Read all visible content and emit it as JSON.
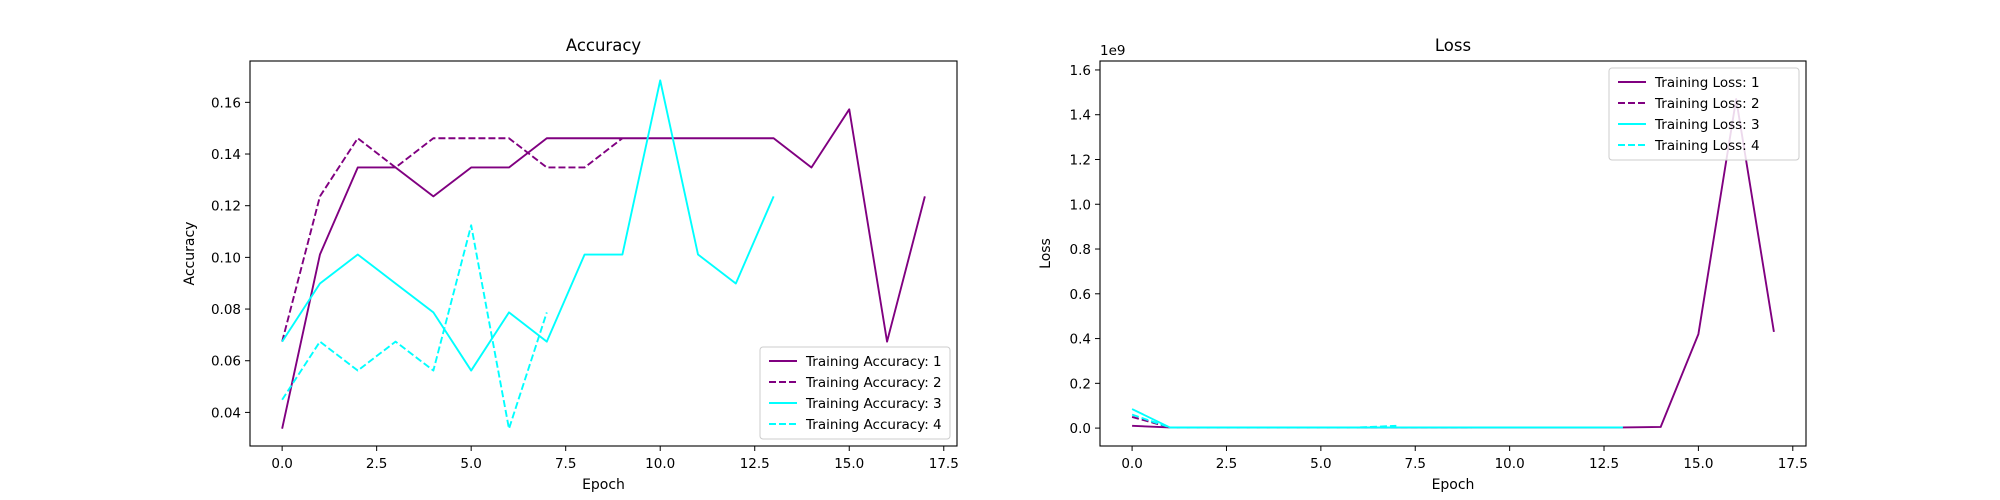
{
  "chart_data": [
    {
      "type": "line",
      "title": "Accuracy",
      "xlabel": "Epoch",
      "ylabel": "Accuracy",
      "xlim": [
        -0.85,
        17.85
      ],
      "ylim": [
        0.027,
        0.176
      ],
      "xticks": [
        0.0,
        2.5,
        5.0,
        7.5,
        10.0,
        12.5,
        15.0,
        17.5
      ],
      "xtick_labels": [
        "0.0",
        "2.5",
        "5.0",
        "7.5",
        "10.0",
        "12.5",
        "15.0",
        "17.5"
      ],
      "yticks": [
        0.04,
        0.06,
        0.08,
        0.1,
        0.12,
        0.14,
        0.16
      ],
      "ytick_labels": [
        "0.04",
        "0.06",
        "0.08",
        "0.10",
        "0.12",
        "0.14",
        "0.16"
      ],
      "offset_text": "",
      "grid": false,
      "legend_position": "lower-right",
      "series": [
        {
          "name": "Training Accuracy: 1",
          "color": "#800080",
          "dash": "solid",
          "x": [
            0,
            1,
            2,
            3,
            4,
            5,
            6,
            7,
            8,
            9,
            10,
            11,
            12,
            13,
            14,
            15,
            16,
            17
          ],
          "y": [
            0.0337,
            0.1011,
            0.1348,
            0.1348,
            0.1236,
            0.1348,
            0.1348,
            0.1461,
            0.1461,
            0.1461,
            0.1461,
            0.1461,
            0.1461,
            0.1461,
            0.1348,
            0.1573,
            0.0674,
            0.1236
          ]
        },
        {
          "name": "Training Accuracy: 2",
          "color": "#800080",
          "dash": "dashed",
          "x": [
            0,
            1,
            2,
            3,
            4,
            5,
            6,
            7,
            8,
            9
          ],
          "y": [
            0.0674,
            0.1236,
            0.1461,
            0.1348,
            0.1461,
            0.1461,
            0.1461,
            0.1348,
            0.1348,
            0.1461
          ]
        },
        {
          "name": "Training Accuracy: 3",
          "color": "#00ffff",
          "dash": "solid",
          "x": [
            0,
            1,
            2,
            3,
            4,
            5,
            6,
            7,
            8,
            9,
            10,
            11,
            12,
            13
          ],
          "y": [
            0.0674,
            0.0899,
            0.1011,
            0.0899,
            0.0787,
            0.0562,
            0.0787,
            0.0674,
            0.1011,
            0.1011,
            0.1685,
            0.1011,
            0.0899,
            0.1236
          ]
        },
        {
          "name": "Training Accuracy: 4",
          "color": "#00ffff",
          "dash": "dashed",
          "x": [
            0,
            1,
            2,
            3,
            4,
            5,
            6,
            7
          ],
          "y": [
            0.0449,
            0.0674,
            0.0562,
            0.0674,
            0.0562,
            0.1124,
            0.0337,
            0.0787
          ]
        }
      ]
    },
    {
      "type": "line",
      "title": "Loss",
      "xlabel": "Epoch",
      "ylabel": "Loss",
      "xlim": [
        -0.85,
        17.85
      ],
      "ylim": [
        -0.08,
        1.64
      ],
      "xticks": [
        0.0,
        2.5,
        5.0,
        7.5,
        10.0,
        12.5,
        15.0,
        17.5
      ],
      "xtick_labels": [
        "0.0",
        "2.5",
        "5.0",
        "7.5",
        "10.0",
        "12.5",
        "15.0",
        "17.5"
      ],
      "yticks": [
        0.0,
        0.2,
        0.4,
        0.6,
        0.8,
        1.0,
        1.2,
        1.4,
        1.6
      ],
      "ytick_labels": [
        "0.0",
        "0.2",
        "0.4",
        "0.6",
        "0.8",
        "1.0",
        "1.2",
        "1.4",
        "1.6"
      ],
      "offset_text": "1e9",
      "grid": false,
      "legend_position": "upper-right",
      "series": [
        {
          "name": "Training Loss: 1",
          "color": "#800080",
          "dash": "solid",
          "x": [
            0,
            1,
            2,
            3,
            4,
            5,
            6,
            7,
            8,
            9,
            10,
            11,
            12,
            13,
            14,
            15,
            16,
            17
          ],
          "y": [
            0.01,
            0.003,
            0.003,
            0.003,
            0.003,
            0.003,
            0.003,
            0.003,
            0.003,
            0.003,
            0.003,
            0.003,
            0.003,
            0.003,
            0.005,
            0.42,
            1.47,
            0.43
          ]
        },
        {
          "name": "Training Loss: 2",
          "color": "#800080",
          "dash": "dashed",
          "x": [
            0,
            1,
            2,
            3,
            4,
            5,
            6,
            7,
            8,
            9
          ],
          "y": [
            0.05,
            0.003,
            0.003,
            0.003,
            0.003,
            0.003,
            0.003,
            0.003,
            0.003,
            0.003
          ]
        },
        {
          "name": "Training Loss: 3",
          "color": "#00ffff",
          "dash": "solid",
          "x": [
            0,
            1,
            2,
            3,
            4,
            5,
            6,
            7,
            8,
            9,
            10,
            11,
            12,
            13
          ],
          "y": [
            0.085,
            0.003,
            0.003,
            0.003,
            0.003,
            0.003,
            0.003,
            0.003,
            0.003,
            0.003,
            0.003,
            0.003,
            0.003,
            0.003
          ]
        },
        {
          "name": "Training Loss: 4",
          "color": "#00ffff",
          "dash": "dashed",
          "x": [
            0,
            1,
            2,
            3,
            4,
            5,
            6,
            7
          ],
          "y": [
            0.06,
            0.003,
            0.003,
            0.003,
            0.003,
            0.003,
            0.003,
            0.01
          ]
        }
      ]
    }
  ]
}
